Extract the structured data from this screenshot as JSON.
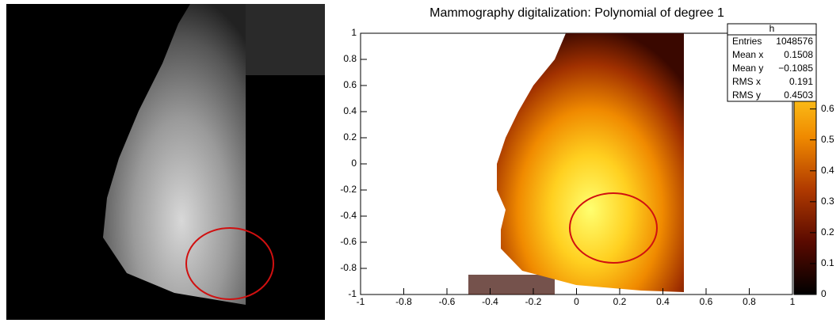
{
  "chart_data": {
    "type": "heatmap",
    "title": "Mammography digitalization: Polynomial of degree 1",
    "xlim": [
      -1,
      1
    ],
    "xticks": [
      -1,
      -0.8,
      -0.6,
      -0.4,
      -0.2,
      0,
      0.2,
      0.4,
      0.6,
      0.8,
      1
    ],
    "ylim": [
      -1,
      1
    ],
    "yticks": [
      -1,
      -0.8,
      -0.6,
      -0.4,
      -0.2,
      0,
      0.2,
      0.4,
      0.6,
      0.8,
      1
    ],
    "zlim": [
      0,
      0.85
    ],
    "zticks": [
      0,
      0.1,
      0.2,
      0.3,
      0.4,
      0.5,
      0.6
    ],
    "stats": {
      "title": "h",
      "rows": [
        [
          "Entries",
          "1048576"
        ],
        [
          "Mean x",
          "0.1508"
        ],
        [
          "Mean y",
          "−0.1085"
        ],
        [
          "RMS x",
          "0.191"
        ],
        [
          "RMS y",
          "0.4503"
        ]
      ]
    }
  }
}
